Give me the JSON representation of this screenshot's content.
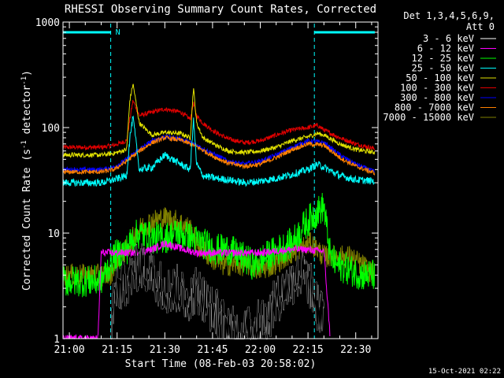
{
  "chart_data": {
    "type": "line",
    "title": "RHESSI Observing Summary Count Rates, Corrected",
    "xlabel": "Start Time (08-Feb-03 20:58:02)",
    "ylabel_main": "Corrected Count Rate (s",
    "ylabel_sup1": "-1",
    "ylabel_mid": " detector",
    "ylabel_sup2": "-1",
    "ylabel_end": ")",
    "y_scale": "log",
    "ylim": [
      1,
      1000
    ],
    "xlim_minutes": [
      -2,
      97
    ],
    "x_ticks": [
      {
        "minute": 0,
        "label": "21:00"
      },
      {
        "minute": 15,
        "label": "21:15"
      },
      {
        "minute": 30,
        "label": "21:30"
      },
      {
        "minute": 45,
        "label": "21:45"
      },
      {
        "minute": 60,
        "label": "22:00"
      },
      {
        "minute": 75,
        "label": "22:15"
      },
      {
        "minute": 90,
        "label": "22:30"
      }
    ],
    "y_ticks": [
      {
        "value": 1,
        "label": "1"
      },
      {
        "value": 10,
        "label": "10"
      },
      {
        "value": 100,
        "label": "100"
      },
      {
        "value": 1000,
        "label": "1000"
      }
    ],
    "legend": {
      "header1": "Det 1,3,4,5,6,9,",
      "header2": "Att 0",
      "placement": "right",
      "entries": [
        {
          "label": "3 - 6 keV",
          "color": "#000000"
        },
        {
          "label": "6 - 12 keV",
          "color": "#ff00ff"
        },
        {
          "label": "12 - 25 keV",
          "color": "#00ff00"
        },
        {
          "label": "25 - 50 keV",
          "color": "#00ffff"
        },
        {
          "label": "50 - 100 keV",
          "color": "#e0e000"
        },
        {
          "label": "100 - 300 keV",
          "color": "#e00000"
        },
        {
          "label": "300 - 800 keV",
          "color": "#0000ff"
        },
        {
          "label": "800 - 7000 keV",
          "color": "#ff8000"
        },
        {
          "label": "7000 - 15000 keV",
          "color": "#808000"
        }
      ]
    },
    "marker_label": "N",
    "night_markers_minutes": [
      [
        -2,
        13
      ],
      [
        77,
        96
      ]
    ],
    "series": [
      {
        "name": "100 - 300 keV",
        "color": "#e00000",
        "x": [
          -2,
          10,
          14,
          18,
          19,
          20,
          22,
          26,
          30,
          35,
          38,
          39,
          40,
          42,
          46,
          50,
          55,
          60,
          65,
          70,
          75,
          78,
          80,
          85,
          90,
          96
        ],
        "y": [
          65,
          65,
          68,
          75,
          120,
          180,
          130,
          140,
          150,
          140,
          120,
          170,
          130,
          110,
          90,
          78,
          72,
          75,
          85,
          95,
          100,
          105,
          95,
          80,
          70,
          63
        ]
      },
      {
        "name": "50 - 100 keV",
        "color": "#e0e000",
        "x": [
          -2,
          10,
          14,
          18,
          19,
          20,
          22,
          26,
          30,
          35,
          38,
          39,
          40,
          42,
          46,
          50,
          55,
          60,
          65,
          70,
          75,
          78,
          80,
          85,
          90,
          96
        ],
        "y": [
          55,
          55,
          57,
          62,
          180,
          260,
          110,
          85,
          90,
          88,
          80,
          240,
          110,
          80,
          68,
          60,
          58,
          60,
          65,
          75,
          82,
          88,
          85,
          70,
          62,
          58
        ]
      },
      {
        "name": "300 - 800 keV",
        "color": "#0000ff",
        "x": [
          -2,
          10,
          14,
          18,
          22,
          26,
          30,
          35,
          40,
          46,
          50,
          55,
          60,
          65,
          70,
          75,
          80,
          85,
          90,
          96
        ],
        "y": [
          40,
          40,
          42,
          50,
          62,
          75,
          82,
          78,
          68,
          55,
          48,
          45,
          48,
          55,
          65,
          75,
          72,
          55,
          45,
          38
        ]
      },
      {
        "name": "800 - 7000 keV",
        "color": "#ff8000",
        "x": [
          -2,
          10,
          14,
          18,
          22,
          26,
          30,
          35,
          40,
          46,
          50,
          55,
          60,
          65,
          70,
          75,
          80,
          85,
          90,
          96
        ],
        "y": [
          38,
          38,
          40,
          48,
          60,
          72,
          80,
          76,
          66,
          52,
          46,
          43,
          45,
          52,
          62,
          70,
          68,
          52,
          43,
          37
        ]
      },
      {
        "name": "25 - 50 keV",
        "color": "#00ffff",
        "x": [
          -2,
          10,
          14,
          18,
          19,
          20,
          22,
          26,
          30,
          35,
          38,
          39,
          40,
          42,
          46,
          50,
          55,
          60,
          65,
          70,
          75,
          78,
          80,
          85,
          90,
          96
        ],
        "y": [
          30,
          30,
          32,
          35,
          80,
          125,
          40,
          42,
          55,
          45,
          40,
          120,
          45,
          35,
          33,
          32,
          30,
          31,
          33,
          36,
          40,
          45,
          42,
          35,
          32,
          31
        ]
      },
      {
        "name": "7000 - 15000 keV",
        "color": "#808000",
        "x": [
          -2,
          13,
          14,
          16,
          18,
          20,
          22,
          26,
          30,
          34,
          38,
          40,
          44,
          48,
          52,
          56,
          60,
          64,
          68,
          72,
          76,
          78,
          80,
          84,
          88,
          92,
          96
        ],
        "y": [
          4,
          4,
          5,
          6,
          7,
          9,
          11,
          13,
          14,
          13,
          11,
          8,
          6,
          5,
          5,
          5,
          4.5,
          5,
          6,
          7,
          8,
          7,
          6,
          6,
          6,
          5,
          4
        ]
      },
      {
        "name": "12 - 25 keV",
        "color": "#00ff00",
        "x": [
          -2,
          10,
          14,
          18,
          20,
          22,
          26,
          30,
          34,
          38,
          42,
          46,
          50,
          54,
          58,
          62,
          66,
          70,
          74,
          76,
          78,
          80,
          82,
          84,
          88,
          92,
          96
        ],
        "y": [
          3.5,
          3.5,
          6,
          7,
          9,
          10,
          9,
          9,
          10,
          9,
          8,
          7,
          7,
          6,
          5,
          6,
          7,
          8,
          12,
          14,
          16,
          18,
          6,
          5,
          4.5,
          4,
          4
        ]
      },
      {
        "name": "6 - 12 keV",
        "color": "#ff00ff",
        "x": [
          -2,
          9,
          10,
          12,
          16,
          20,
          26,
          30,
          36,
          40,
          46,
          50,
          56,
          60,
          66,
          70,
          74,
          78,
          80,
          82
        ],
        "y": [
          1,
          1,
          6.5,
          6.5,
          6.5,
          6.5,
          7,
          8,
          7,
          6.5,
          6.5,
          6.5,
          6.5,
          6.5,
          6.8,
          7,
          7,
          6.8,
          6.8,
          1
        ]
      },
      {
        "name": "3 - 6 keV",
        "color": "#000000",
        "x": [
          13,
          14,
          16,
          18,
          20,
          22,
          24,
          26,
          28,
          30,
          32,
          34,
          36,
          38,
          40,
          42,
          44,
          46,
          48,
          50,
          52,
          54,
          56,
          58,
          60,
          62,
          64,
          66,
          68,
          70,
          72,
          74,
          76,
          78,
          80
        ],
        "y": [
          1,
          2.5,
          3,
          3.5,
          4,
          5,
          4.5,
          4,
          3.5,
          3,
          2.8,
          3,
          2.5,
          2.5,
          3,
          2.5,
          2,
          1.8,
          1.5,
          1.2,
          1.2,
          1.1,
          1.2,
          1.2,
          1.5,
          1.5,
          2,
          2.5,
          3,
          3.5,
          4,
          4,
          3,
          2,
          1.5
        ]
      }
    ]
  },
  "footer": {
    "timestamp": "15-Oct-2021 02:22"
  }
}
